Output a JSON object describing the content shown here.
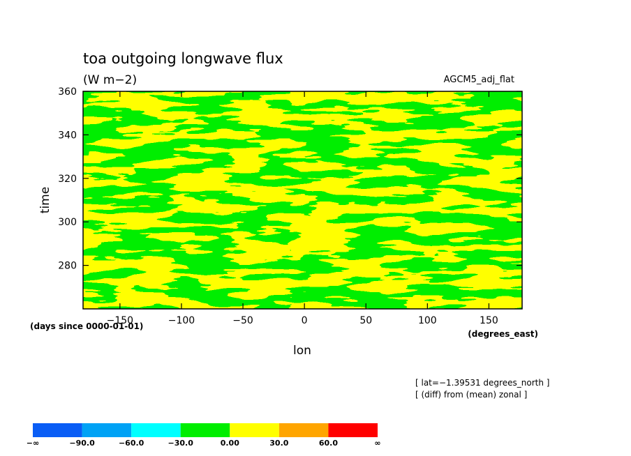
{
  "chart_data": {
    "type": "heatmap",
    "title": "toa outgoing longwave flux",
    "units": "(W m−2)",
    "run_label": "AGCM5_adj_flat",
    "xlabel": "lon",
    "x_units": "(degrees_east)",
    "ylabel": "time",
    "y_units": "(days since 0000-01-01)",
    "xlim": [
      -180,
      177
    ],
    "ylim": [
      260,
      360
    ],
    "x_ticks": [
      -150,
      -100,
      -50,
      0,
      50,
      100,
      150
    ],
    "x_tick_labels": [
      "−150",
      "−100",
      "−50",
      "0",
      "50",
      "100",
      "150"
    ],
    "y_ticks": [
      280,
      300,
      320,
      340,
      360
    ],
    "y_tick_labels": [
      "280",
      "300",
      "320",
      "340",
      "360"
    ],
    "notes": [
      "[ lat=−1.39531 degrees_north ]",
      "[ (diff) from (mean) zonal ]"
    ],
    "colorbar": {
      "colors": [
        "#0a5df5",
        "#00a2f5",
        "#00ffff",
        "#00ee00",
        "#ffff00",
        "#ffa500",
        "#ff0000"
      ],
      "labels": [
        "−∞",
        "−90.0",
        "−60.0",
        "−30.0",
        "0.00",
        "30.0",
        "60.0",
        "∞"
      ]
    },
    "field": {
      "description_classes": [
        "−30.0 to 0.00",
        "0.00 to 30.0"
      ],
      "colors": [
        "#00ee00",
        "#ffff00"
      ]
    }
  }
}
